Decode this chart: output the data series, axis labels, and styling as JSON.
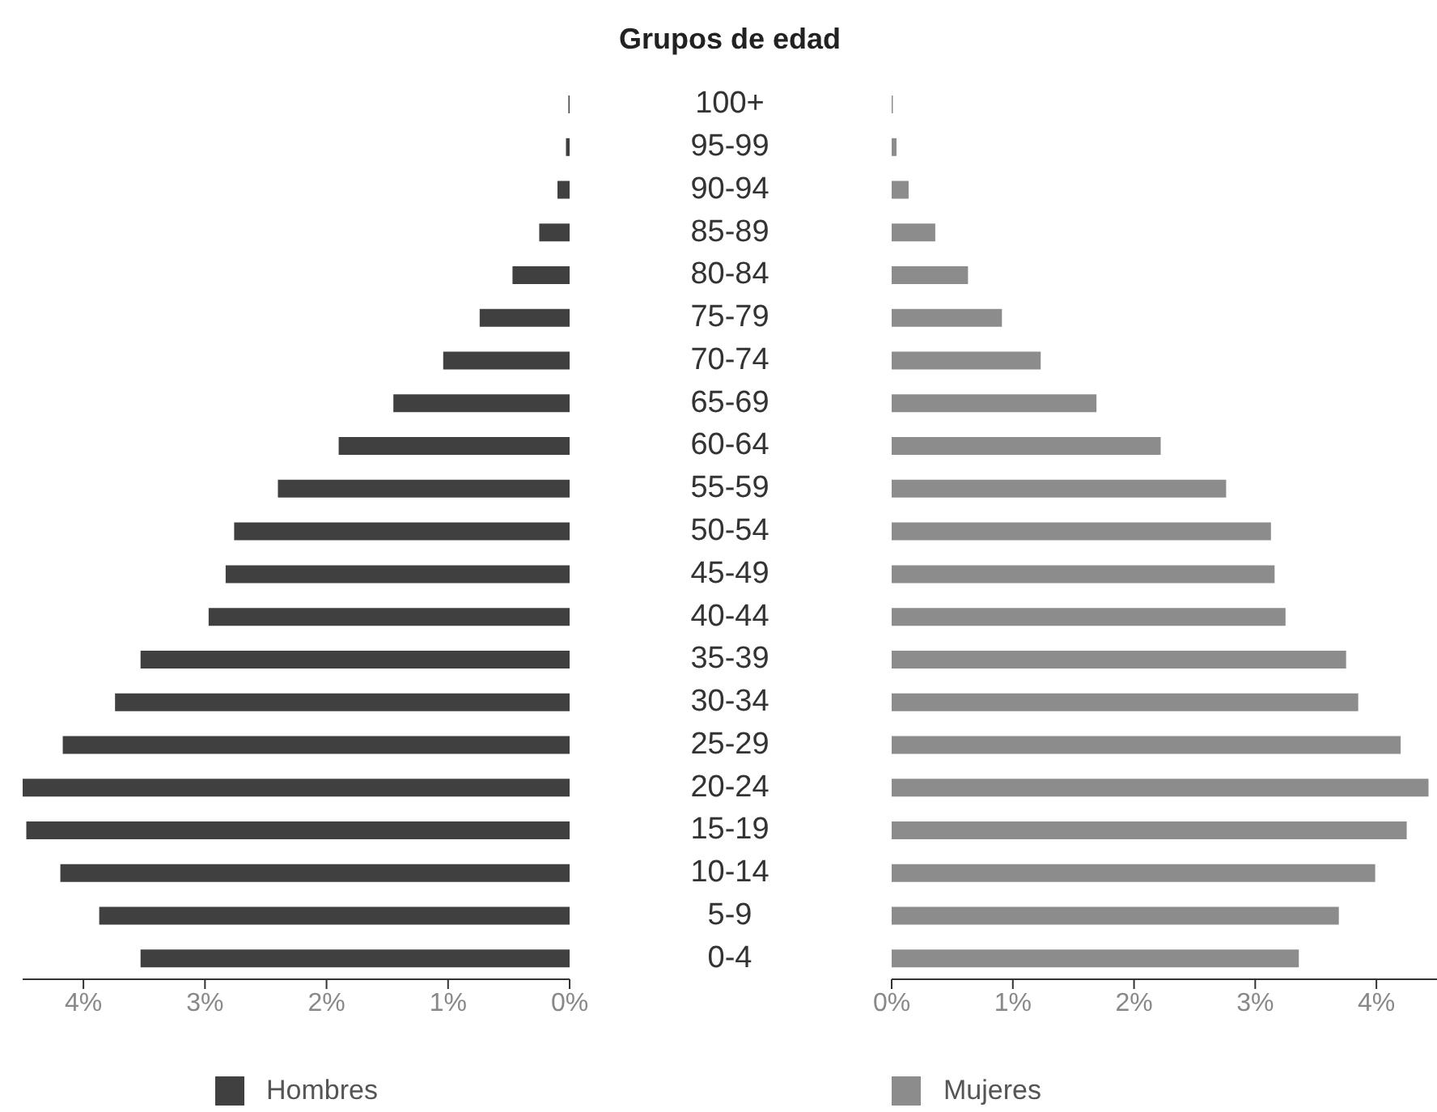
{
  "chart_data": [
    {
      "type": "bar",
      "orientation": "horizontal",
      "ylabel": "Grupos de edad",
      "categories": [
        "100+",
        "95-99",
        "90-94",
        "85-89",
        "80-84",
        "75-79",
        "70-74",
        "65-69",
        "60-64",
        "55-59",
        "50-54",
        "45-49",
        "40-44",
        "35-39",
        "30-34",
        "25-29",
        "20-24",
        "15-19",
        "10-14",
        "5-9",
        "0-4"
      ],
      "series": [
        {
          "name": "Hombres",
          "color": "#404040",
          "values": [
            0.01,
            0.03,
            0.1,
            0.25,
            0.47,
            0.74,
            1.04,
            1.45,
            1.9,
            2.4,
            2.76,
            2.83,
            2.97,
            3.53,
            3.74,
            4.17,
            4.5,
            4.47,
            4.19,
            3.87,
            3.53
          ]
        }
      ],
      "xlim": [
        4.5,
        0
      ],
      "xticks": [
        {
          "value": 4,
          "label": "4%"
        },
        {
          "value": 3,
          "label": "3%"
        },
        {
          "value": 2,
          "label": "2%"
        },
        {
          "value": 1,
          "label": "1%"
        },
        {
          "value": 0,
          "label": "0%"
        }
      ],
      "legend": "bottom"
    },
    {
      "type": "bar",
      "orientation": "horizontal",
      "series": [
        {
          "name": "Mujeres",
          "color": "#8c8c8c",
          "values": [
            0.01,
            0.04,
            0.14,
            0.36,
            0.63,
            0.91,
            1.23,
            1.69,
            2.22,
            2.76,
            3.13,
            3.16,
            3.25,
            3.75,
            3.85,
            4.2,
            4.43,
            4.25,
            3.99,
            3.69,
            3.36
          ]
        }
      ],
      "xlim": [
        0,
        4.5
      ],
      "xticks": [
        {
          "value": 0,
          "label": "0%"
        },
        {
          "value": 1,
          "label": "1%"
        },
        {
          "value": 2,
          "label": "2%"
        },
        {
          "value": 3,
          "label": "3%"
        },
        {
          "value": 4,
          "label": "4%"
        }
      ],
      "tick_labels": "x",
      "legend": "bottom"
    }
  ]
}
